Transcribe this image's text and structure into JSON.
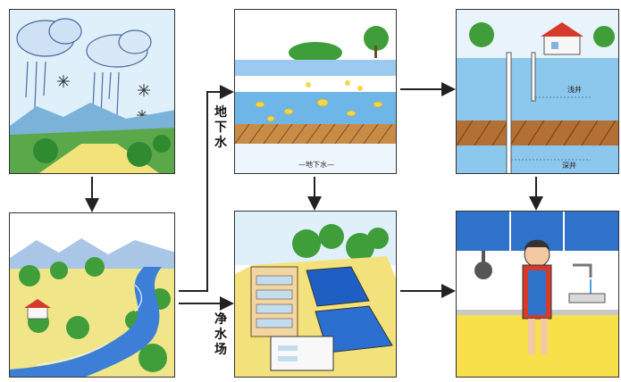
{
  "labels": {
    "underground_water": "地\n下\n水",
    "water_plant": "净\n水\n场",
    "underground_water_panel": "—地下水—",
    "shallow_well": "浅井",
    "deep_well": "深井"
  },
  "colors": {
    "sky": "#7fc3ea",
    "cloud": "#e9f2fb",
    "tree": "#3f9e3a",
    "ground": "#e9d36a",
    "river": "#3d7fd6",
    "soil": "#b9773a",
    "water": "#6fb6e8"
  }
}
